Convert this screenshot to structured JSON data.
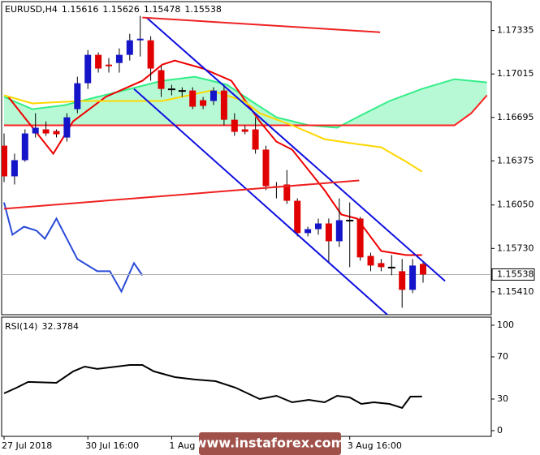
{
  "chart_data": [
    {
      "type": "candlestick",
      "symbol": "EURUSD,H4",
      "categories": [
        "27 Jul 2018",
        null,
        null,
        null,
        null,
        null,
        null,
        null,
        "30 Jul 16:00",
        null,
        null,
        null,
        null,
        null,
        null,
        null,
        "1 Aug",
        null,
        null,
        null,
        null,
        null,
        null,
        null,
        null,
        null,
        null,
        null,
        null,
        null,
        null,
        null,
        null,
        "3 Aug 16:00",
        null,
        null,
        null,
        null,
        null,
        null,
        null
      ],
      "open": [
        1.16487,
        1.16261,
        1.1638,
        1.16577,
        1.16607,
        1.16595,
        1.16547,
        1.16756,
        1.16947,
        1.17156,
        1.17084,
        1.17096,
        1.17156,
        1.17263,
        1.17263,
        1.17043,
        1.16905,
        1.16893,
        1.16893,
        1.16822,
        1.16816,
        1.16893,
        1.16678,
        1.16607,
        1.16607,
        1.16458,
        1.16189,
        1.16201,
        1.16081,
        1.15843,
        1.15872,
        1.15914,
        1.15783,
        1.15938,
        1.1595,
        1.15675,
        1.15622,
        1.15592,
        1.15562,
        1.15425,
        1.15616
      ],
      "high": [
        1.16577,
        1.16428,
        1.16607,
        1.16726,
        1.16666,
        1.16607,
        1.16726,
        1.16995,
        1.17192,
        1.17174,
        1.17132,
        1.17204,
        1.17311,
        1.17443,
        1.17293,
        1.17072,
        1.16935,
        1.16917,
        1.16917,
        1.16846,
        1.16917,
        1.16935,
        1.16726,
        1.16637,
        1.16696,
        1.16487,
        1.16219,
        1.16308,
        1.16099,
        1.1589,
        1.1595,
        1.1595,
        1.16099,
        1.16069,
        1.15962,
        1.15699,
        1.15652,
        1.15681,
        1.15652,
        1.15652,
        1.15626
      ],
      "low": [
        1.16219,
        1.16201,
        1.16368,
        1.16547,
        1.16559,
        1.16547,
        1.16517,
        1.16726,
        1.16905,
        1.17025,
        1.17025,
        1.17025,
        1.17114,
        1.17144,
        1.16965,
        1.16846,
        1.16858,
        1.16846,
        1.16756,
        1.16756,
        1.16786,
        1.16637,
        1.16559,
        1.16571,
        1.16428,
        1.16159,
        1.16099,
        1.16058,
        1.15819,
        1.15819,
        1.15831,
        1.15622,
        1.15741,
        1.15592,
        1.1564,
        1.15562,
        1.15562,
        1.15532,
        1.15293,
        1.15401,
        1.15478
      ],
      "close": [
        1.16261,
        1.1638,
        1.16577,
        1.16619,
        1.16577,
        1.16571,
        1.16696,
        1.16947,
        1.17156,
        1.17055,
        1.17072,
        1.17156,
        1.17263,
        1.17275,
        1.17055,
        1.16905,
        1.16905,
        1.16893,
        1.16774,
        1.1678,
        1.16893,
        1.16678,
        1.16589,
        1.16589,
        1.16458,
        1.16189,
        1.16177,
        1.16081,
        1.15843,
        1.15872,
        1.15914,
        1.15783,
        1.15938,
        1.15938,
        1.15664,
        1.15604,
        1.15592,
        1.15592,
        1.15425,
        1.15604,
        1.15538
      ],
      "up_color": "#1414c8",
      "down_color": "#e00000",
      "ylim": [
        1.1523,
        1.1756
      ],
      "yticks": [
        1.17335,
        1.17015,
        1.16695,
        1.16375,
        {
          "value": 1.1605,
          "label": "1.16050"
        },
        {
          "value": 1.1573,
          "label": "1.15730"
        },
        {
          "value": 1.1541,
          "label": "1.15410"
        }
      ],
      "cloud": {
        "color": "#33ee88",
        "upper": {
          "x": [
            0,
            2.7,
            5.8,
            8.9,
            12.0,
            15.1,
            18.2,
            19.8,
            21.3,
            23.6,
            26.0,
            29.1,
            31.8,
            33.7,
            36.8,
            39.9,
            43.0,
            46.1
          ],
          "values": [
            1.16846,
            1.16756,
            1.16786,
            1.16846,
            1.16905,
            1.16965,
            1.16995,
            1.16965,
            1.16935,
            1.16816,
            1.16696,
            1.16637,
            1.16619,
            1.16696,
            1.16816,
            1.16905,
            1.16977,
            1.16953
          ]
        },
        "lower": {
          "color": "#ff2020",
          "x": [
            0,
            43.0,
            44.6,
            46.1
          ],
          "values": [
            1.16637,
            1.16637,
            1.16726,
            1.16858
          ]
        }
      },
      "series": [
        {
          "color": "#ee0000",
          "x": [
            0.4,
            4.7,
            6.6,
            9.7,
            13.2,
            15.1,
            16.3,
            19.0,
            21.7,
            24.4,
            26.0,
            27.5,
            30.6,
            32.2,
            33.7,
            36.0,
            38.4,
            39.9
          ],
          "values": [
            1.16846,
            1.16428,
            1.16666,
            1.16846,
            1.16965,
            1.17084,
            1.17114,
            1.17055,
            1.16965,
            1.16666,
            1.16517,
            1.16458,
            1.16159,
            1.1598,
            1.1595,
            1.15711,
            1.15681,
            1.15681
          ]
        },
        {
          "color": "#ffd700",
          "x": [
            0,
            2.7,
            7.4,
            15.1,
            19.8,
            22.9,
            24.4,
            27.5,
            30.6,
            33.7,
            36.0,
            38.4,
            39.9
          ],
          "values": [
            1.16858,
            1.16798,
            1.16816,
            1.16816,
            1.16893,
            1.16816,
            1.16726,
            1.16637,
            1.16535,
            1.16499,
            1.16475,
            1.16368,
            1.16296
          ]
        },
        {
          "color": "#2a4bd7",
          "x": [
            0,
            0.8,
            1.9,
            3.1,
            3.9,
            5.0,
            7.0,
            8.9,
            10.1,
            11.2,
            12.4,
            13.2
          ],
          "values": [
            1.16069,
            1.15831,
            1.1589,
            1.15861,
            1.15801,
            1.1595,
            1.15652,
            1.15562,
            1.15562,
            1.15413,
            1.15622,
            1.15532
          ]
        }
      ],
      "trendlines": [
        {
          "color": "#1010e0",
          "x": [
            13.6,
            42.1
          ],
          "values": [
            1.17431,
            1.1549
          ]
        },
        {
          "color": "#1010e0",
          "x": [
            12.4,
            36.7
          ],
          "values": [
            1.16905,
            1.15234
          ]
        },
        {
          "color": "#ee2222",
          "x": [
            13.2,
            35.9
          ],
          "values": [
            1.17431,
            1.17323
          ]
        },
        {
          "color": "#ee2222",
          "x": [
            0,
            33.9
          ],
          "values": [
            1.16022,
            1.16231
          ]
        }
      ]
    },
    {
      "type": "line",
      "title": "RSI(14)",
      "series": [
        {
          "color": "#000000",
          "x": [
            0,
            1.2,
            2.3,
            5.0,
            6.6,
            7.7,
            8.9,
            12.0,
            13.2,
            14.3,
            16.3,
            18.2,
            20.2,
            22.1,
            24.4,
            26.0,
            27.5,
            29.1,
            30.6,
            31.8,
            33.0,
            34.1,
            35.3,
            36.8,
            38.0,
            38.8,
            39.9
          ],
          "values": [
            35.4,
            40.8,
            46.2,
            45.4,
            56.2,
            60.8,
            58.5,
            62.3,
            62.3,
            56.2,
            50.8,
            48.5,
            46.9,
            40.8,
            30.0,
            33.1,
            26.9,
            29.2,
            26.9,
            33.1,
            31.5,
            25.4,
            26.9,
            25.4,
            21.5,
            32.3,
            32.3784
          ]
        }
      ],
      "ylim": [
        -5.4,
        107.7
      ],
      "yticks": [
        0,
        30,
        70,
        100
      ]
    }
  ],
  "watermark": "www.instaforex.com"
}
